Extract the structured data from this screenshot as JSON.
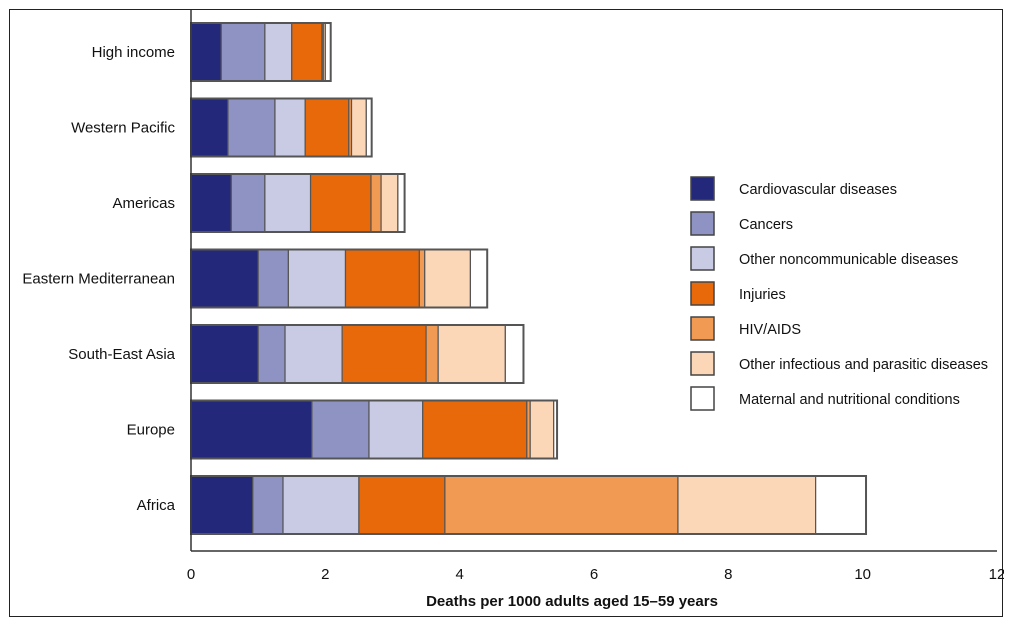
{
  "chart_data": {
    "type": "bar",
    "orientation": "horizontal",
    "stacked": true,
    "title": "",
    "xlabel": "Deaths per 1000 adults aged 15–59 years",
    "ylabel": "",
    "xlim": [
      0,
      12
    ],
    "xticks": [
      0,
      2,
      4,
      6,
      8,
      10,
      12
    ],
    "grid": false,
    "legend_position": "right",
    "categories": [
      "High income",
      "Western Pacific",
      "Americas",
      "Eastern Mediterranean",
      "South-East Asia",
      "Europe",
      "Africa"
    ],
    "series": [
      {
        "name": "Cardiovascular diseases",
        "color": "#24287a",
        "values": [
          0.45,
          0.55,
          0.6,
          1.0,
          1.0,
          1.8,
          0.92
        ]
      },
      {
        "name": "Cancers",
        "color": "#8e93c4",
        "values": [
          0.65,
          0.7,
          0.5,
          0.45,
          0.4,
          0.85,
          0.45
        ]
      },
      {
        "name": "Other noncommunicable diseases",
        "color": "#c8cbe3",
        "values": [
          0.4,
          0.45,
          0.68,
          0.85,
          0.85,
          0.8,
          1.13
        ]
      },
      {
        "name": "Injuries",
        "color": "#e8690a",
        "values": [
          0.45,
          0.65,
          0.9,
          1.1,
          1.25,
          1.55,
          1.28
        ]
      },
      {
        "name": "HIV/AIDS",
        "color": "#f19a53",
        "values": [
          0.02,
          0.04,
          0.15,
          0.08,
          0.18,
          0.05,
          3.47
        ]
      },
      {
        "name": "Other infectious and parasitic diseases",
        "color": "#fbd7b8",
        "values": [
          0.03,
          0.22,
          0.25,
          0.68,
          1.0,
          0.35,
          2.05
        ]
      },
      {
        "name": "Maternal and nutritional conditions",
        "color": "#ffffff",
        "values": [
          0.08,
          0.08,
          0.1,
          0.25,
          0.27,
          0.05,
          0.75
        ]
      }
    ]
  }
}
